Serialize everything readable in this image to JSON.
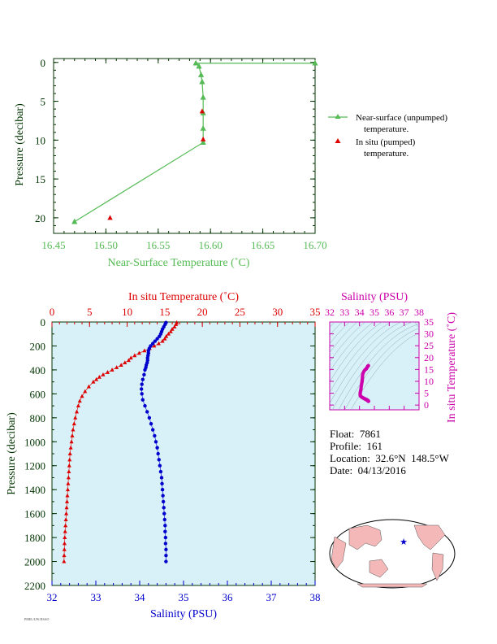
{
  "colors": {
    "near_surface": "#55bb55",
    "in_situ": "#dd0000",
    "salinity": "#0000cc",
    "ts_panel": "#cc00aa",
    "dark_axis": "#003300",
    "panel_bg": "#d8f0f8"
  },
  "float_info": {
    "float": "Float:  7861",
    "profile": "Profile:  161",
    "location": "Location:  32.6°N  148.5°W",
    "date": "Date:  04/13/2016"
  },
  "footer": "PMEL/UW/JISAO",
  "chart_data": [
    {
      "type": "line",
      "xlabel": "Near-Surface Temperature (˚C)",
      "ylabel": "Pressure (decibar)",
      "xlim": [
        16.45,
        16.7
      ],
      "ylim": [
        22,
        -0.5
      ],
      "x_ticks": [
        "16.45",
        "16.50",
        "16.55",
        "16.60",
        "16.65",
        "16.70"
      ],
      "y_ticks": [
        "0",
        "5",
        "10",
        "15",
        "20"
      ],
      "series": [
        {
          "name": "Near-surface (unpumped) temperature.",
          "marker": "triangle",
          "points": [
            [
              16.7,
              0.1
            ],
            [
              16.586,
              0.1
            ],
            [
              16.589,
              0.5
            ],
            [
              16.591,
              1.6
            ],
            [
              16.592,
              2.5
            ],
            [
              16.593,
              4.5
            ],
            [
              16.593,
              6.5
            ],
            [
              16.593,
              8.5
            ],
            [
              16.593,
              10.3
            ],
            [
              16.47,
              20.5
            ]
          ]
        },
        {
          "name": "In situ (pumped) temperature.",
          "marker": "triangle",
          "points": [
            [
              16.592,
              6.3
            ],
            [
              16.593,
              9.9
            ],
            [
              16.504,
              20.0
            ]
          ]
        }
      ],
      "legend": [
        "Near-surface (unpumped)",
        "temperature.",
        "In situ (pumped)",
        "temperature."
      ]
    },
    {
      "type": "line",
      "title_top": "In situ Temperature (˚C)",
      "xlabel": "Salinity (PSU)",
      "ylabel": "Pressure (decibar)",
      "temp_lim": [
        0,
        35
      ],
      "sal_lim": [
        32,
        38
      ],
      "ylim": [
        2200,
        0
      ],
      "temp_ticks": [
        "0",
        "5",
        "10",
        "15",
        "20",
        "25",
        "30",
        "35"
      ],
      "sal_ticks": [
        "32",
        "33",
        "34",
        "35",
        "36",
        "37",
        "38"
      ],
      "y_ticks": [
        "0",
        "200",
        "400",
        "600",
        "800",
        "1000",
        "1200",
        "1400",
        "1600",
        "1800",
        "2000",
        "2200"
      ],
      "temperature": {
        "p": [
          5,
          20,
          40,
          60,
          80,
          100,
          120,
          140,
          160,
          180,
          200,
          220,
          240,
          260,
          280,
          300,
          320,
          340,
          360,
          380,
          400,
          420,
          440,
          460,
          480,
          500,
          540,
          580,
          620,
          660,
          700,
          750,
          800,
          850,
          900,
          950,
          1000,
          1050,
          1100,
          1150,
          1200,
          1250,
          1300,
          1350,
          1400,
          1450,
          1500,
          1550,
          1600,
          1650,
          1700,
          1750,
          1800,
          1850,
          1900,
          1950,
          2000
        ],
        "t": [
          16.6,
          16.5,
          16.3,
          16.0,
          15.8,
          15.5,
          15.2,
          15.0,
          14.7,
          14.2,
          13.6,
          13.0,
          12.3,
          11.6,
          11.0,
          10.5,
          10.2,
          9.7,
          9.2,
          8.6,
          8.0,
          7.4,
          6.8,
          6.3,
          5.9,
          5.5,
          4.9,
          4.4,
          4.0,
          3.7,
          3.5,
          3.3,
          3.1,
          2.95,
          2.8,
          2.7,
          2.6,
          2.5,
          2.4,
          2.35,
          2.3,
          2.25,
          2.2,
          2.15,
          2.1,
          2.05,
          2.0,
          1.95,
          1.9,
          1.85,
          1.8,
          1.75,
          1.7,
          1.67,
          1.65,
          1.62,
          1.6
        ]
      },
      "salinity": {
        "p": [
          5,
          20,
          40,
          60,
          80,
          100,
          120,
          140,
          160,
          180,
          200,
          220,
          240,
          260,
          280,
          300,
          320,
          340,
          360,
          380,
          400,
          440,
          480,
          520,
          560,
          600,
          650,
          700,
          750,
          800,
          850,
          900,
          950,
          1000,
          1050,
          1100,
          1150,
          1200,
          1250,
          1300,
          1350,
          1400,
          1450,
          1500,
          1550,
          1600,
          1650,
          1700,
          1750,
          1800,
          1850,
          1900,
          1950,
          2000
        ],
        "s": [
          34.6,
          34.58,
          34.55,
          34.52,
          34.5,
          34.48,
          34.45,
          34.4,
          34.35,
          34.3,
          34.25,
          34.22,
          34.2,
          34.2,
          34.19,
          34.18,
          34.18,
          34.17,
          34.15,
          34.14,
          34.12,
          34.1,
          34.07,
          34.05,
          34.04,
          34.05,
          34.07,
          34.12,
          34.17,
          34.22,
          34.26,
          34.3,
          34.34,
          34.37,
          34.4,
          34.42,
          34.44,
          34.46,
          34.48,
          34.5,
          34.51,
          34.52,
          34.53,
          34.54,
          34.55,
          34.56,
          34.57,
          34.58,
          34.58,
          34.59,
          34.59,
          34.6,
          34.6,
          34.6
        ]
      }
    },
    {
      "type": "scatter",
      "title_top": "Salinity (PSU)",
      "ylabel": "In situ Temperature (˚C)",
      "xlim": [
        32,
        38
      ],
      "ylim": [
        -2,
        35
      ],
      "x_ticks": [
        "32",
        "33",
        "34",
        "35",
        "36",
        "37",
        "38"
      ],
      "y_ticks": [
        "0",
        "5",
        "10",
        "15",
        "20",
        "25",
        "30",
        "35"
      ]
    }
  ]
}
